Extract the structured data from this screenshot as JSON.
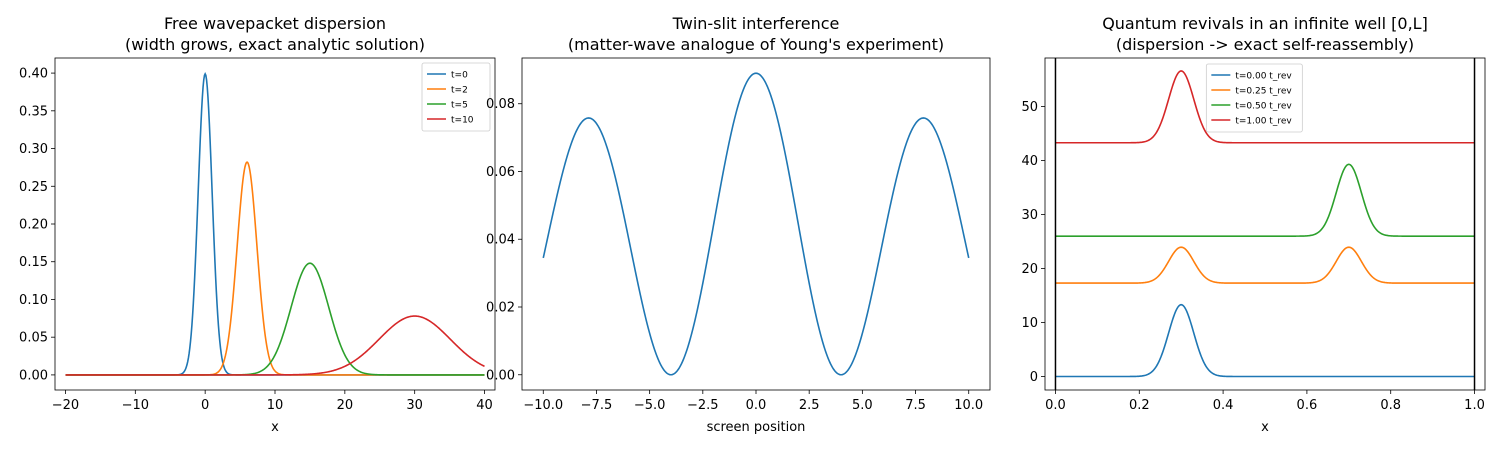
{
  "chart_data": [
    {
      "type": "line",
      "title": "Free wavepacket dispersion\n(width grows, exact analytic solution)",
      "xlabel": "x",
      "ylabel": "",
      "xlim": [
        -21.5,
        41.5
      ],
      "ylim": [
        -0.02,
        0.42
      ],
      "xticks": [
        -20,
        -10,
        0,
        10,
        20,
        30,
        40
      ],
      "yticks": [
        0.0,
        0.05,
        0.1,
        0.15,
        0.2,
        0.25,
        0.3,
        0.35,
        0.4
      ],
      "ytick_labels": [
        "0.00",
        "0.05",
        "0.10",
        "0.15",
        "0.20",
        "0.25",
        "0.30",
        "0.35",
        "0.40"
      ],
      "grid": false,
      "legend": "top-right",
      "x_range": [
        -20,
        40
      ],
      "series": [
        {
          "name": "t=0",
          "color": "#1f77b4",
          "center": 0,
          "sigma": 1.0,
          "peak": 0.399,
          "offset": 0
        },
        {
          "name": "t=2",
          "color": "#ff7f0e",
          "center": 6,
          "sigma": 1.414,
          "peak": 0.282,
          "offset": 0
        },
        {
          "name": "t=5",
          "color": "#2ca02c",
          "center": 15,
          "sigma": 2.693,
          "peak": 0.148,
          "offset": 0
        },
        {
          "name": "t=10",
          "color": "#d62728",
          "center": 30,
          "sigma": 5.099,
          "peak": 0.078,
          "offset": 0
        }
      ]
    },
    {
      "type": "line",
      "title": "Twin-slit interference\n(matter-wave analogue of Young's experiment)",
      "xlabel": "screen position",
      "ylabel": "",
      "xlim": [
        -11,
        11
      ],
      "ylim": [
        -0.0045,
        0.0935
      ],
      "xticks": [
        -10,
        -7.5,
        -5,
        -2.5,
        0,
        2.5,
        5,
        7.5,
        10
      ],
      "xtick_labels": [
        "−10.0",
        "−7.5",
        "−5.0",
        "−2.5",
        "0.0",
        "2.5",
        "5.0",
        "7.5",
        "10.0"
      ],
      "yticks": [
        0.0,
        0.02,
        0.04,
        0.06,
        0.08
      ],
      "ytick_labels": [
        "0.00",
        "0.02",
        "0.04",
        "0.06",
        "0.08"
      ],
      "grid": false,
      "x_range": [
        -10,
        10
      ],
      "series": [
        {
          "name": "",
          "color": "#1f77b4",
          "fringe_period": 8,
          "envelope_sigma": 70,
          "peak": 0.089,
          "endpoints_value": 0.0443
        }
      ]
    },
    {
      "type": "line",
      "title": "Quantum revivals in an infinite well [0,L]\n(dispersion -> exact self-reassembly)",
      "xlabel": "x",
      "ylabel": "",
      "xlim": [
        -0.025,
        1.025
      ],
      "ylim": [
        -2.5,
        59
      ],
      "xticks": [
        0.0,
        0.2,
        0.4,
        0.6,
        0.8,
        1.0
      ],
      "xtick_labels": [
        "0.0",
        "0.2",
        "0.4",
        "0.6",
        "0.8",
        "1.0"
      ],
      "yticks": [
        0,
        10,
        20,
        30,
        40,
        50
      ],
      "grid": false,
      "legend": "top-left-center",
      "walls": [
        0,
        1
      ],
      "x_range": [
        0,
        1
      ],
      "series": [
        {
          "name": "t=0.00 t_rev",
          "color": "#1f77b4",
          "offset": 0,
          "bumps": [
            {
              "center": 0.3,
              "height": 13.3,
              "sigma": 0.03
            }
          ]
        },
        {
          "name": "t=0.25 t_rev",
          "color": "#ff7f0e",
          "offset": 17.3,
          "bumps": [
            {
              "center": 0.3,
              "height": 6.65,
              "sigma": 0.03
            },
            {
              "center": 0.7,
              "height": 6.65,
              "sigma": 0.03
            }
          ]
        },
        {
          "name": "t=0.50 t_rev",
          "color": "#2ca02c",
          "offset": 26.0,
          "bumps": [
            {
              "center": 0.7,
              "height": 13.3,
              "sigma": 0.03
            }
          ]
        },
        {
          "name": "t=1.00 t_rev",
          "color": "#d62728",
          "offset": 43.3,
          "bumps": [
            {
              "center": 0.3,
              "height": 13.3,
              "sigma": 0.03
            }
          ]
        }
      ]
    }
  ]
}
